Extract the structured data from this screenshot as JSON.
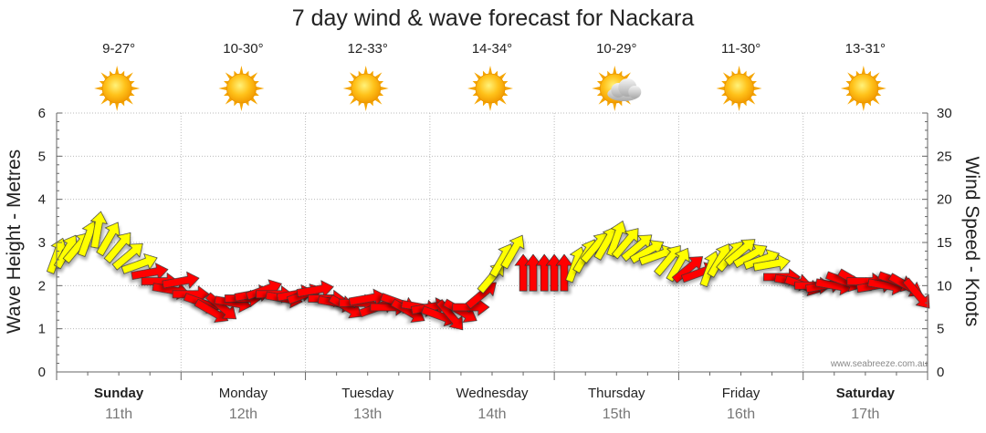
{
  "chart_data": {
    "type": "line",
    "title": "7 day wind & wave forecast for Nackara",
    "ylabel": "Wave Height - Metres",
    "ylabel_right": "Wind Speed - Knots",
    "ylim": [
      0,
      6
    ],
    "ylim_right": [
      0,
      30
    ],
    "yticks": [
      "0",
      "1",
      "2",
      "3",
      "4",
      "5",
      "6"
    ],
    "yticks_right": [
      "0",
      "5",
      "10",
      "15",
      "20",
      "25",
      "30"
    ],
    "credit": "www.seabreeze.com.au",
    "days": [
      {
        "name": "Sunday",
        "date": "11th",
        "weekend": true,
        "temp": "9-27°",
        "icon": "sun-icon"
      },
      {
        "name": "Monday",
        "date": "12th",
        "weekend": false,
        "temp": "10-30°",
        "icon": "sun-icon"
      },
      {
        "name": "Tuesday",
        "date": "13th",
        "weekend": false,
        "temp": "12-33°",
        "icon": "sun-icon"
      },
      {
        "name": "Wednesday",
        "date": "14th",
        "weekend": false,
        "temp": "14-34°",
        "icon": "sun-icon"
      },
      {
        "name": "Thursday",
        "date": "15th",
        "weekend": false,
        "temp": "10-29°",
        "icon": "partly-cloudy-icon"
      },
      {
        "name": "Friday",
        "date": "16th",
        "weekend": false,
        "temp": "11-30°",
        "icon": "sun-icon"
      },
      {
        "name": "Saturday",
        "date": "17th",
        "weekend": true,
        "temp": "13-31°",
        "icon": "sun-icon"
      }
    ],
    "wind_series": {
      "name": "Wind Speed - Knots",
      "x_days": [
        0.0,
        0.08,
        0.17,
        0.25,
        0.33,
        0.42,
        0.5,
        0.58,
        0.67,
        0.75,
        0.83,
        0.92,
        1.0,
        1.08,
        1.17,
        1.25,
        1.33,
        1.42,
        1.5,
        1.58,
        1.67,
        1.75,
        1.83,
        1.92,
        2.0,
        2.08,
        2.17,
        2.25,
        2.33,
        2.42,
        2.5,
        2.58,
        2.67,
        2.75,
        2.83,
        2.92,
        3.0,
        3.08,
        3.17,
        3.25,
        3.33,
        3.42,
        3.5,
        3.58,
        3.67,
        3.75,
        3.83,
        3.92,
        4.0,
        4.08,
        4.17,
        4.25,
        4.33,
        4.42,
        4.5,
        4.58,
        4.67,
        4.75,
        4.83,
        4.92,
        5.0,
        5.08,
        5.17,
        5.25,
        5.33,
        5.42,
        5.5,
        5.58,
        5.67,
        5.75,
        5.83,
        5.92,
        6.0,
        6.08,
        6.17,
        6.25,
        6.33,
        6.42,
        6.5,
        6.58,
        6.67,
        6.75,
        6.83,
        6.92
      ],
      "values": [
        13.5,
        14.0,
        14.5,
        15.5,
        16.5,
        15.5,
        14.5,
        13.5,
        12.5,
        11.5,
        10.5,
        9.5,
        10.5,
        9.0,
        8.0,
        7.0,
        7.5,
        8.0,
        8.5,
        9.0,
        9.5,
        9.0,
        8.5,
        9.0,
        9.0,
        9.5,
        8.5,
        8.0,
        7.5,
        8.0,
        8.5,
        7.5,
        7.5,
        8.0,
        7.0,
        7.5,
        7.5,
        6.5,
        6.5,
        7.0,
        7.5,
        9.0,
        11.0,
        13.0,
        14.0,
        11.5,
        11.5,
        11.5,
        11.5,
        11.5,
        12.5,
        13.5,
        14.5,
        15.0,
        15.5,
        15.0,
        14.5,
        14.0,
        13.5,
        13.0,
        12.5,
        12.0,
        11.5,
        12.0,
        13.0,
        13.5,
        14.0,
        13.5,
        13.0,
        12.5,
        11.0,
        10.5,
        10.0,
        10.0,
        10.0,
        10.0,
        10.5,
        10.5,
        10.5,
        10.0,
        10.0,
        10.5,
        10.0,
        9.0
      ],
      "colors": [
        "#ffff00",
        "#ffff00",
        "#ffff00",
        "#ffff00",
        "#ffff00",
        "#ffff00",
        "#ffff00",
        "#ffff00",
        "#ffff00",
        "#ff0000",
        "#ff0000",
        "#ff0000",
        "#ff0000",
        "#ff0000",
        "#ff0000",
        "#ff0000",
        "#ff0000",
        "#ff0000",
        "#ff0000",
        "#ff0000",
        "#ff0000",
        "#ff0000",
        "#ff0000",
        "#ff0000",
        "#ff0000",
        "#ff0000",
        "#ff0000",
        "#ff0000",
        "#ff0000",
        "#ff0000",
        "#ff0000",
        "#ff0000",
        "#ff0000",
        "#ff0000",
        "#ff0000",
        "#ff0000",
        "#ff0000",
        "#ff0000",
        "#ff0000",
        "#ff0000",
        "#ff0000",
        "#ff0000",
        "#ffff00",
        "#ffff00",
        "#ffff00",
        "#ff0000",
        "#ff0000",
        "#ff0000",
        "#ff0000",
        "#ff0000",
        "#ffff00",
        "#ffff00",
        "#ffff00",
        "#ffff00",
        "#ffff00",
        "#ffff00",
        "#ffff00",
        "#ffff00",
        "#ffff00",
        "#ffff00",
        "#ffff00",
        "#ff0000",
        "#ff0000",
        "#ffff00",
        "#ffff00",
        "#ffff00",
        "#ffff00",
        "#ffff00",
        "#ffff00",
        "#ffff00",
        "#ff0000",
        "#ff0000",
        "#ff0000",
        "#ff0000",
        "#ff0000",
        "#ff0000",
        "#ff0000",
        "#ff0000",
        "#ff0000",
        "#ff0000",
        "#ff0000",
        "#ff0000",
        "#ff0000",
        "#ff0000"
      ],
      "directions_deg": [
        200,
        210,
        220,
        200,
        190,
        210,
        220,
        230,
        250,
        260,
        270,
        280,
        260,
        270,
        290,
        300,
        310,
        280,
        270,
        260,
        250,
        270,
        280,
        260,
        250,
        260,
        270,
        280,
        300,
        270,
        260,
        250,
        270,
        290,
        300,
        280,
        260,
        290,
        320,
        300,
        270,
        230,
        220,
        210,
        210,
        180,
        180,
        180,
        180,
        180,
        200,
        210,
        220,
        210,
        200,
        220,
        230,
        240,
        250,
        220,
        210,
        230,
        250,
        200,
        210,
        220,
        230,
        240,
        250,
        260,
        270,
        280,
        290,
        270,
        260,
        280,
        290,
        300,
        270,
        260,
        280,
        290,
        300,
        320
      ]
    }
  },
  "colors": {
    "strong_wind": "#ff0000",
    "moderate_wind": "#ffff00",
    "grid": "#bbbbbb"
  }
}
